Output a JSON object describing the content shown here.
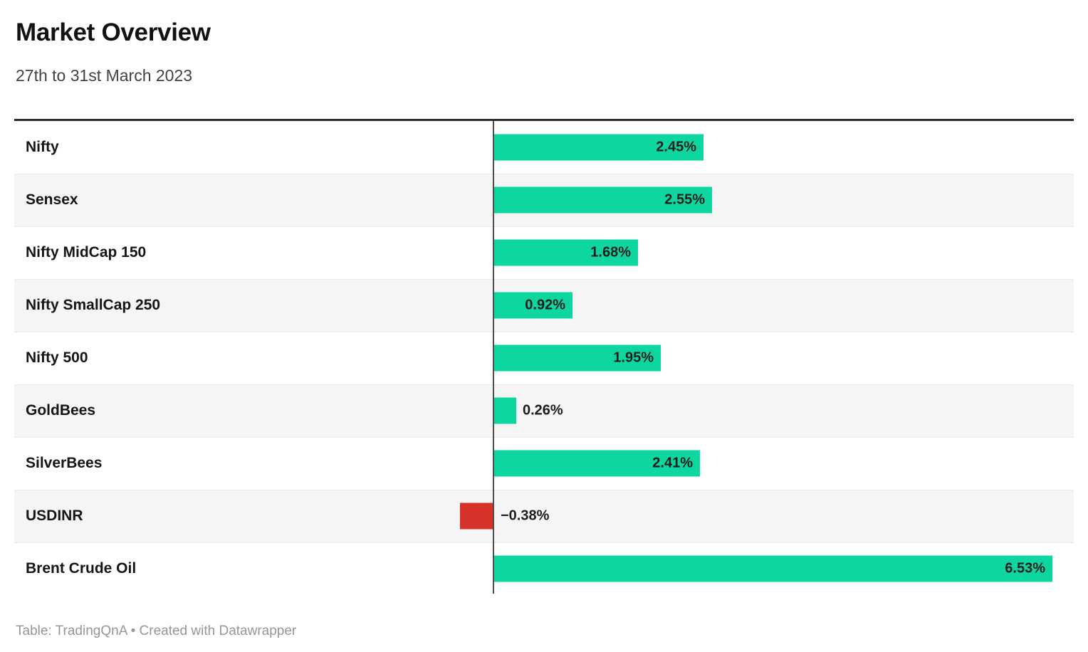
{
  "header": {
    "title": "Market Overview",
    "subtitle": "27th to 31st March 2023"
  },
  "footer": {
    "attribution": "Table: TradingQnA • Created with Datawrapper"
  },
  "colors": {
    "positive_bar": "#0ed6a1",
    "negative_bar": "#d6322a",
    "row_alt_background": "#f5f5f6",
    "row_separator": "#ebebeb",
    "top_border": "#2e2e2e",
    "baseline": "#4d4d4d",
    "value_text": "#1d1d1d",
    "label_text": "#151515"
  },
  "chart_data": {
    "type": "bar",
    "orientation": "horizontal",
    "title": "Market Overview",
    "subtitle": "27th to 31st March 2023",
    "categories": [
      "Nifty",
      "Sensex",
      "Nifty MidCap 150",
      "Nifty SmallCap 250",
      "Nifty 500",
      "GoldBees",
      "SilverBees",
      "USDINR",
      "Brent Crude Oil"
    ],
    "values": [
      2.45,
      2.55,
      1.68,
      0.92,
      1.95,
      0.26,
      2.41,
      -0.38,
      6.53
    ],
    "value_labels": [
      "2.45%",
      "2.55%",
      "1.68%",
      "0.92%",
      "1.95%",
      "0.26%",
      "2.41%",
      "−0.38%",
      "6.53%"
    ],
    "unit": "%",
    "baseline_value": 0,
    "xlim": [
      -0.56,
      6.78
    ],
    "grid": false,
    "legend": false,
    "alternating_row_shading": true,
    "value_label_placement": "inside-end, outside-end for short bars"
  }
}
